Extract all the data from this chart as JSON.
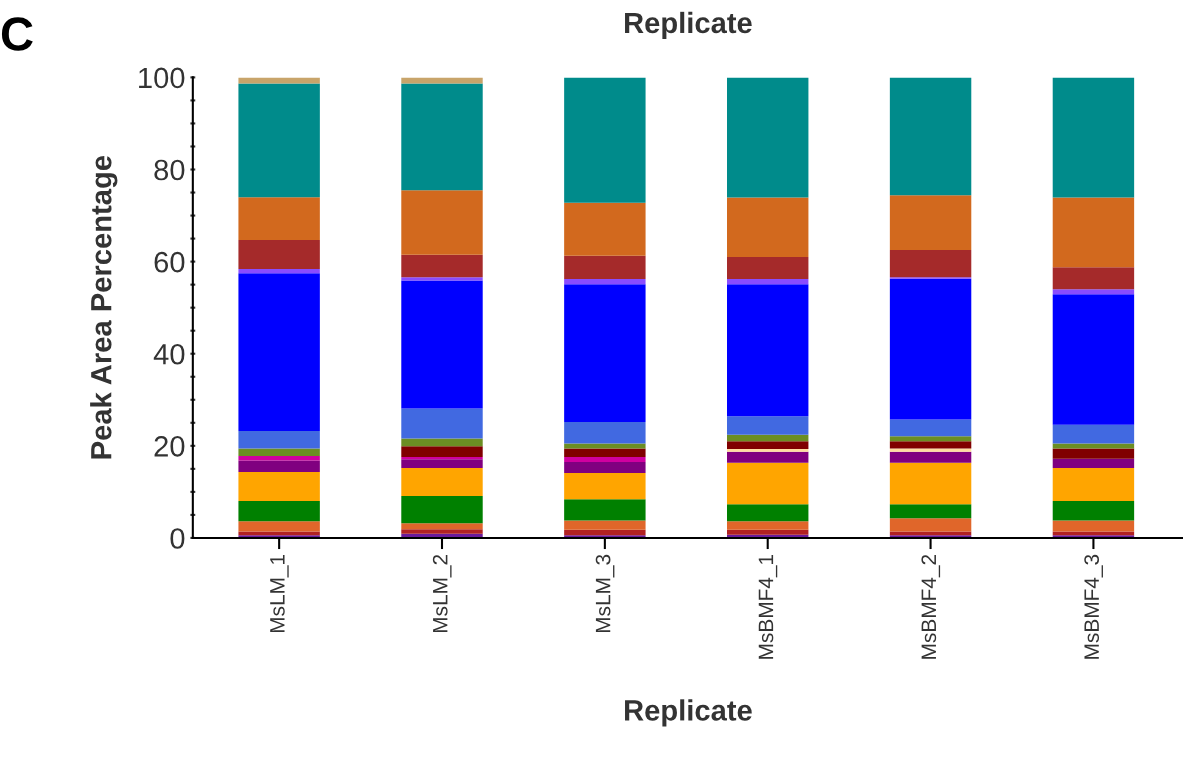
{
  "chart_data": {
    "type": "bar",
    "stacked": true,
    "title": "Replicate",
    "xlabel": "Replicate",
    "ylabel": "Peak Area Percentage",
    "annotations": [
      "C"
    ],
    "categories": [
      "MsLM_1",
      "MsLM_2",
      "MsLM_3",
      "MsBMF4_1",
      "MsBMF4_2",
      "MsBMF4_3"
    ],
    "ylim": [
      0,
      100
    ],
    "yticks": [
      0,
      {
        "value": 5,
        "label": null
      },
      {
        "value": 10,
        "label": null
      },
      {
        "value": 15,
        "label": null
      },
      20,
      {
        "value": 25,
        "label": null
      },
      {
        "value": 30,
        "label": null
      },
      {
        "value": 35,
        "label": null
      },
      40,
      {
        "value": 45,
        "label": null
      },
      {
        "value": 50,
        "label": null
      },
      {
        "value": 55,
        "label": null
      },
      60,
      {
        "value": 65,
        "label": null
      },
      {
        "value": 70,
        "label": null
      },
      {
        "value": 75,
        "label": null
      },
      80,
      {
        "value": 85,
        "label": null
      },
      {
        "value": 90,
        "label": null
      },
      {
        "value": 95,
        "label": null
      },
      100
    ],
    "grid": false,
    "legend": false,
    "series": [
      {
        "color": "#6a1b9a",
        "values": [
          0.6,
          0.9,
          0.6,
          0.7,
          0.6,
          0.6
        ]
      },
      {
        "color": "#b22222",
        "values": [
          0.8,
          1.0,
          1.2,
          1.1,
          0.8,
          0.8
        ]
      },
      {
        "color": "#e0662a",
        "values": [
          2.2,
          1.3,
          2.0,
          1.8,
          2.9,
          2.4
        ]
      },
      {
        "color": "#008000",
        "values": [
          4.4,
          5.9,
          4.6,
          3.7,
          3.0,
          4.2
        ]
      },
      {
        "color": "#ffa500",
        "values": [
          6.3,
          6.1,
          5.7,
          9.0,
          9.0,
          7.2
        ]
      },
      {
        "color": "#800080",
        "values": [
          2.5,
          1.9,
          2.4,
          2.4,
          2.4,
          2.0
        ]
      },
      {
        "color": "#d000a0",
        "values": [
          1.0,
          0.5,
          1.1,
          0,
          0,
          0
        ]
      },
      {
        "color": "#ffdca0",
        "values": [
          0,
          0,
          0,
          0.6,
          0.7,
          0
        ]
      },
      {
        "color": "#800000",
        "values": [
          0,
          2.3,
          1.8,
          1.7,
          1.6,
          2.2
        ]
      },
      {
        "color": "#6b8e23",
        "values": [
          1.6,
          1.7,
          1.1,
          1.4,
          1.1,
          1.1
        ]
      },
      {
        "color": "#4169e1",
        "values": [
          3.8,
          6.5,
          4.7,
          4.0,
          3.6,
          4.1
        ]
      },
      {
        "color": "#0000ff",
        "values": [
          34.3,
          27.8,
          29.9,
          28.7,
          30.6,
          28.3
        ]
      },
      {
        "color": "#8a4cff",
        "values": [
          0.9,
          0.7,
          1.1,
          1.1,
          0.3,
          1.1
        ]
      },
      {
        "color": "#a52a2a",
        "values": [
          6.3,
          4.9,
          5.1,
          4.8,
          5.9,
          4.8
        ]
      },
      {
        "color": "#d2691e",
        "values": [
          9.3,
          14.0,
          11.5,
          12.9,
          11.9,
          15.1
        ]
      },
      {
        "color": "#008b8b",
        "values": [
          24.7,
          23.2,
          27.2,
          26.1,
          25.6,
          26.1
        ]
      },
      {
        "color": "#c8a46a",
        "values": [
          1.3,
          1.3,
          0,
          0,
          0,
          0
        ]
      }
    ]
  }
}
